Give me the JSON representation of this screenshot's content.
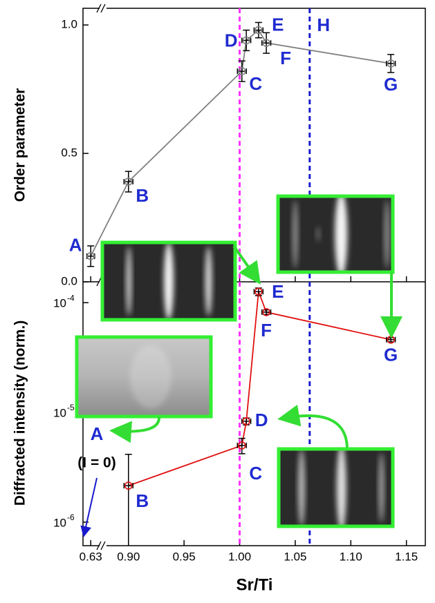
{
  "chart_data": {
    "type": "scatter",
    "x_label": "Sr/Ti",
    "xlim": [
      [
        0.622,
        0.642
      ],
      [
        0.879,
        1.167
      ]
    ],
    "xticks": [
      0.63,
      {
        "value": 0.9,
        "label": "0.90"
      },
      0.95,
      {
        "value": 1.0,
        "label": "1.00"
      },
      1.05,
      {
        "value": 1.1,
        "label": "1.10"
      },
      1.15
    ],
    "vertical_lines": [
      {
        "x": 1.0,
        "color": "#ff33ff",
        "label": null
      },
      {
        "x": 1.063,
        "color": "#1a1acc",
        "label": "H"
      }
    ],
    "panels": [
      {
        "y_label": "Order parameter",
        "log": false,
        "ylim": [
          0,
          1.065
        ],
        "yticks": [
          {
            "value": 0,
            "label": "0.0"
          },
          0.5,
          {
            "value": 1,
            "label": "1.0"
          }
        ],
        "line_color": "#808080",
        "marker_color": "#808080",
        "x": [
          0.63,
          0.9,
          1.002,
          1.006,
          1.017,
          1.024,
          1.136
        ],
        "y": [
          0.1,
          0.39,
          0.82,
          0.94,
          0.98,
          0.93,
          0.85
        ],
        "xerr": [
          0.004,
          0.004,
          0.004,
          0.004,
          0.004,
          0.004,
          0.004
        ],
        "yerr": [
          0.04,
          0.04,
          0.04,
          0.04,
          0.03,
          0.04,
          0.035
        ],
        "point_labels": [
          "A",
          "B",
          "C",
          "D",
          "E",
          "F",
          "G"
        ]
      },
      {
        "y_label": "Diffracted intensity (norm.)",
        "log": true,
        "ylim": [
          6.1e-07,
          0.000155
        ],
        "yticks": [
          {
            "value": 1e-06,
            "label": "10",
            "exp": "-6"
          },
          {
            "value": 1e-05,
            "label": "10",
            "exp": "-5"
          },
          {
            "value": 0.0001,
            "label": "10",
            "exp": "-4"
          }
        ],
        "line_color": "#e01010",
        "marker_color": "#e01010",
        "x": [
          0.9,
          1.002,
          1.006,
          1.017,
          1.024,
          1.136
        ],
        "y": [
          2.15e-06,
          5e-06,
          8.3e-06,
          0.000126,
          8.2e-05,
          4.6e-05
        ],
        "xerr": [
          0.004,
          0.004,
          0.004,
          0.004,
          0.004,
          0.004
        ],
        "yerr": [
          2e-06,
          8e-07,
          6e-07,
          1e-05,
          4e-06,
          2e-06
        ],
        "point_labels": [
          "B",
          "C",
          "D",
          "E",
          "F",
          "G"
        ],
        "extra_labels": [
          "A",
          "(I = 0)"
        ]
      }
    ]
  }
}
